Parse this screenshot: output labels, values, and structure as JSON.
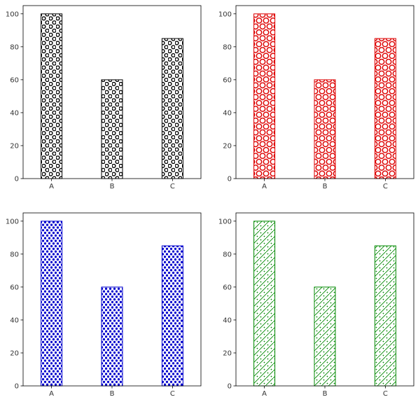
{
  "chart_data": [
    {
      "type": "bar",
      "categories": [
        "A",
        "B",
        "C"
      ],
      "values": [
        100,
        60,
        85
      ],
      "ylim": [
        0,
        105
      ],
      "yticks": [
        0,
        20,
        40,
        60,
        80,
        100
      ],
      "grid": false,
      "edge_color": "#000000",
      "hatch": "small-open-circles"
    },
    {
      "type": "bar",
      "categories": [
        "A",
        "B",
        "C"
      ],
      "values": [
        100,
        60,
        85
      ],
      "ylim": [
        0,
        105
      ],
      "yticks": [
        0,
        20,
        40,
        60,
        80,
        100
      ],
      "grid": false,
      "edge_color": "#dd0000",
      "hatch": "large-open-circles"
    },
    {
      "type": "bar",
      "categories": [
        "A",
        "B",
        "C"
      ],
      "values": [
        100,
        60,
        85
      ],
      "ylim": [
        0,
        105
      ],
      "yticks": [
        0,
        20,
        40,
        60,
        80,
        100
      ],
      "grid": false,
      "edge_color": "#0000cc",
      "hatch": "dots"
    },
    {
      "type": "bar",
      "categories": [
        "A",
        "B",
        "C"
      ],
      "values": [
        100,
        60,
        85
      ],
      "ylim": [
        0,
        105
      ],
      "yticks": [
        0,
        20,
        40,
        60,
        80,
        100
      ],
      "grid": false,
      "edge_color": "#008800",
      "hatch": "diagonal-lines-with-dots"
    }
  ]
}
